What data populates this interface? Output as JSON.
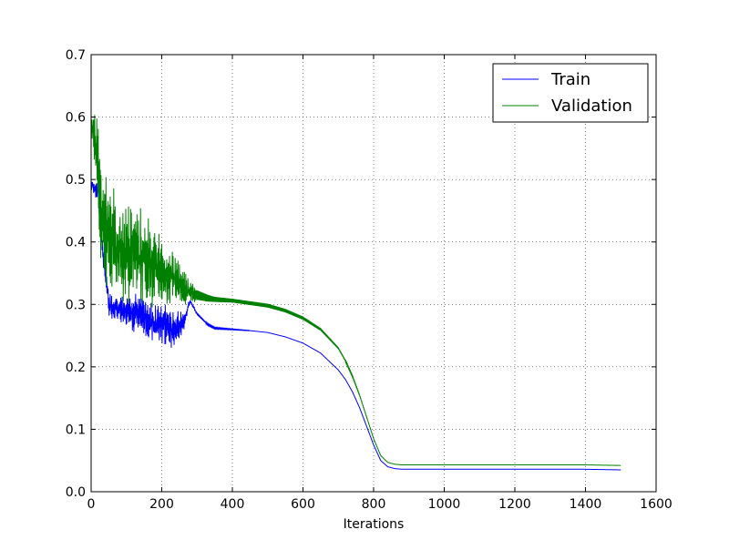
{
  "chart_data": {
    "type": "line",
    "title": "",
    "xlabel": "Iterations",
    "ylabel": "",
    "xlim": [
      0,
      1600
    ],
    "ylim": [
      0.0,
      0.7
    ],
    "xticks": [
      0,
      200,
      400,
      600,
      800,
      1000,
      1200,
      1400,
      1600
    ],
    "yticks": [
      0.0,
      0.1,
      0.2,
      0.3,
      0.4,
      0.5,
      0.6,
      0.7
    ],
    "xtick_labels": [
      "0",
      "200",
      "400",
      "600",
      "800",
      "1000",
      "1200",
      "1400",
      "1600"
    ],
    "ytick_labels": [
      "0.0",
      "0.1",
      "0.2",
      "0.3",
      "0.4",
      "0.5",
      "0.6",
      "0.7"
    ],
    "grid": true,
    "legend_position": "top-right",
    "series": [
      {
        "name": "Train",
        "color": "#0000ff",
        "x": [
          0,
          10,
          20,
          30,
          50,
          80,
          100,
          130,
          150,
          180,
          200,
          220,
          240,
          260,
          280,
          300,
          330,
          350,
          400,
          450,
          500,
          550,
          600,
          650,
          700,
          720,
          740,
          760,
          780,
          800,
          820,
          840,
          860,
          880,
          900,
          1000,
          1100,
          1200,
          1300,
          1400,
          1500
        ],
        "y": [
          0.49,
          0.488,
          0.48,
          0.4,
          0.3,
          0.29,
          0.29,
          0.285,
          0.28,
          0.27,
          0.27,
          0.265,
          0.26,
          0.27,
          0.305,
          0.285,
          0.268,
          0.262,
          0.26,
          0.258,
          0.255,
          0.248,
          0.238,
          0.222,
          0.195,
          0.18,
          0.16,
          0.135,
          0.105,
          0.075,
          0.05,
          0.04,
          0.037,
          0.036,
          0.036,
          0.036,
          0.036,
          0.036,
          0.036,
          0.036,
          0.035
        ],
        "oscillation_band": [
          [
            0,
            0.02
          ],
          [
            100,
            0.04
          ],
          [
            150,
            0.05
          ],
          [
            200,
            0.05
          ],
          [
            230,
            0.05
          ],
          [
            250,
            0.035
          ],
          [
            280,
            0.005
          ],
          [
            330,
            0.002
          ],
          [
            400,
            0.001
          ],
          [
            500,
            0.0
          ]
        ]
      },
      {
        "name": "Validation",
        "color": "#008000",
        "x": [
          0,
          10,
          20,
          30,
          50,
          80,
          100,
          130,
          150,
          180,
          200,
          220,
          240,
          260,
          280,
          300,
          330,
          350,
          400,
          450,
          500,
          550,
          600,
          650,
          700,
          720,
          740,
          760,
          780,
          800,
          820,
          840,
          860,
          880,
          900,
          1000,
          1100,
          1200,
          1300,
          1400,
          1500
        ],
        "y": [
          0.59,
          0.58,
          0.5,
          0.42,
          0.4,
          0.39,
          0.385,
          0.38,
          0.375,
          0.36,
          0.35,
          0.345,
          0.34,
          0.33,
          0.32,
          0.315,
          0.31,
          0.308,
          0.306,
          0.302,
          0.298,
          0.29,
          0.278,
          0.26,
          0.23,
          0.21,
          0.185,
          0.155,
          0.12,
          0.085,
          0.058,
          0.047,
          0.044,
          0.043,
          0.043,
          0.043,
          0.043,
          0.043,
          0.043,
          0.043,
          0.042
        ],
        "oscillation_band": [
          [
            0,
            0.01
          ],
          [
            20,
            0.15
          ],
          [
            50,
            0.13
          ],
          [
            100,
            0.12
          ],
          [
            150,
            0.12
          ],
          [
            180,
            0.1
          ],
          [
            200,
            0.07
          ],
          [
            230,
            0.06
          ],
          [
            260,
            0.05
          ],
          [
            300,
            0.015
          ],
          [
            350,
            0.008
          ],
          [
            400,
            0.006
          ],
          [
            500,
            0.006
          ],
          [
            600,
            0.005
          ],
          [
            700,
            0.003
          ],
          [
            800,
            0.001
          ],
          [
            850,
            0.0
          ]
        ]
      }
    ]
  }
}
